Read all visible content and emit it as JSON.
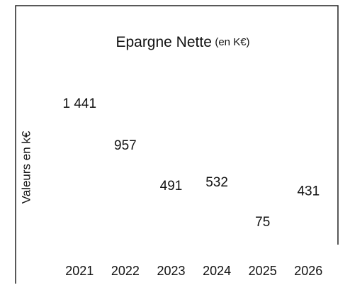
{
  "chart_data": {
    "type": "label",
    "title": "Epargne Nette",
    "title_suffix": "(en K€)",
    "y_label": "Valeurs en k€",
    "categories": [
      "2021",
      "2022",
      "2023",
      "2024",
      "2025",
      "2026"
    ],
    "values": [
      1441,
      957,
      491,
      532,
      75,
      431
    ],
    "value_labels": [
      "1 441",
      "957",
      "491",
      "532",
      "75",
      "431"
    ],
    "color": "#111111"
  }
}
